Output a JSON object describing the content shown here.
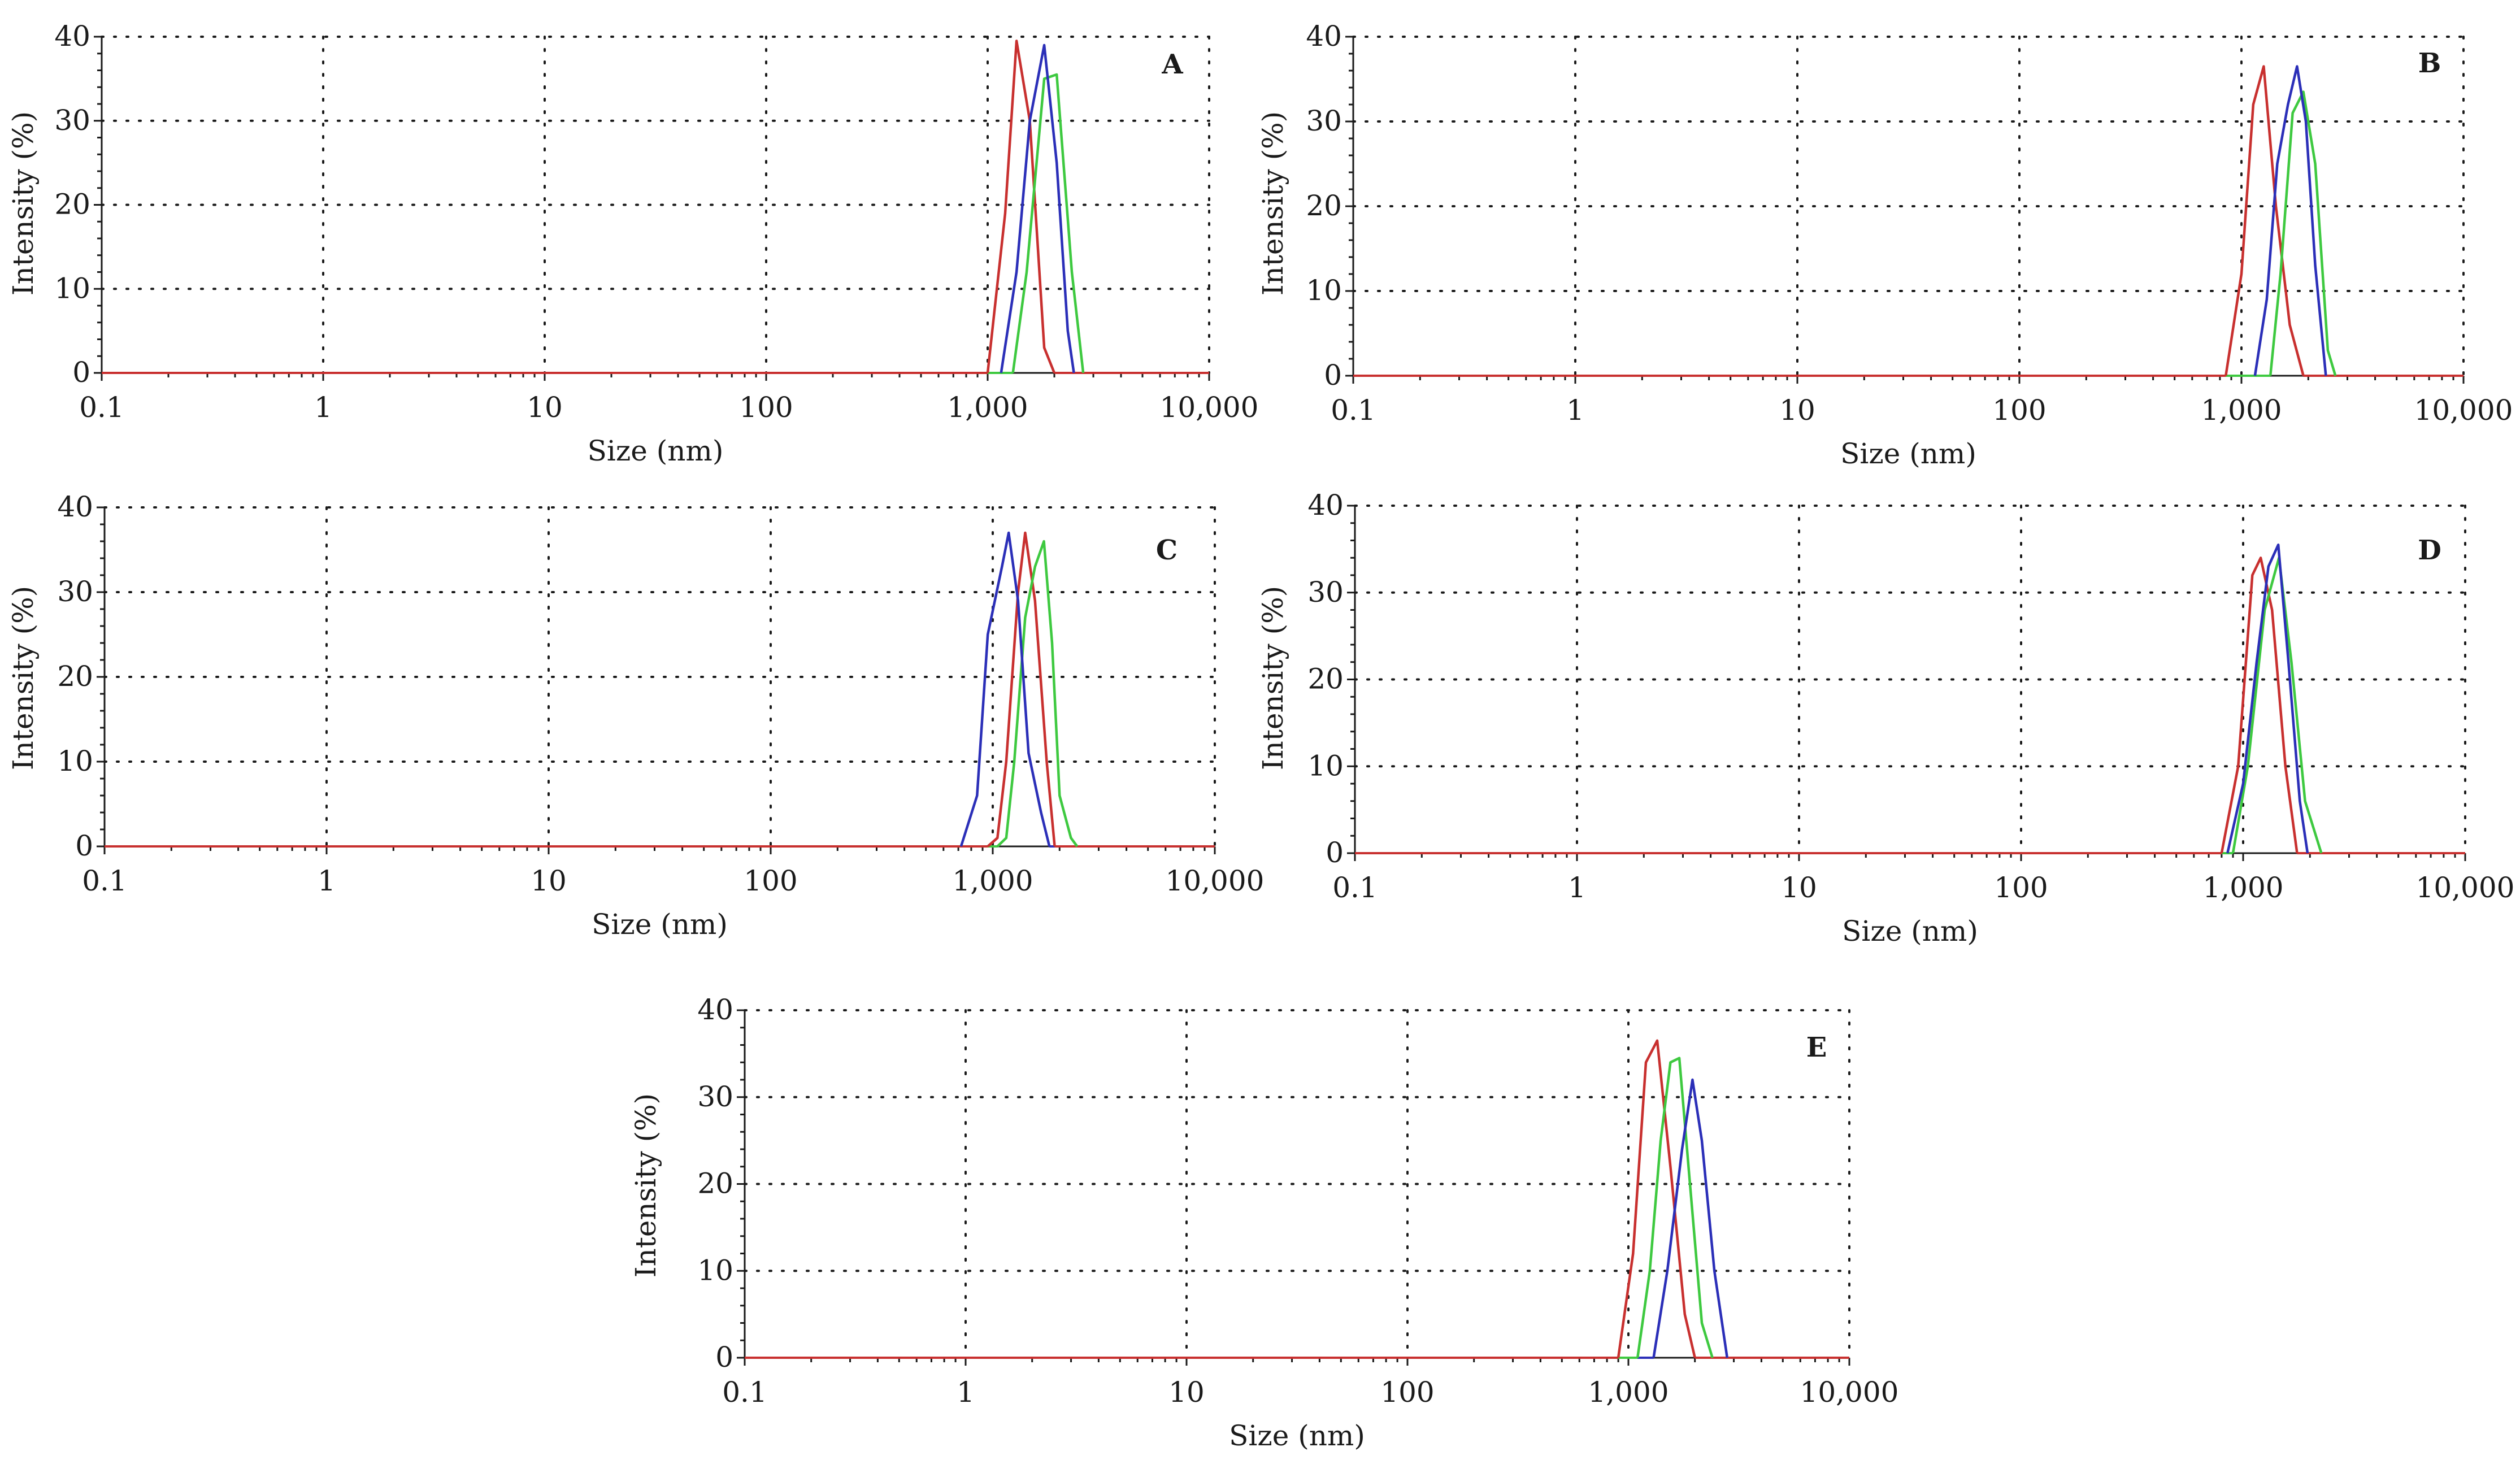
{
  "figure": {
    "series_colors": {
      "red": "#c8302f",
      "green": "#3ec940",
      "blue": "#2b2fb8"
    },
    "axis_color": "#1a1a1a",
    "grid_color": "#1a1a1a"
  },
  "chart_data": [
    {
      "id": "A",
      "type": "line",
      "panel_label": "A",
      "xlabel": "Size (nm)",
      "ylabel": "Intensity (%)",
      "x_scale": "log",
      "xlim": [
        0.1,
        10000
      ],
      "ylim": [
        0,
        40
      ],
      "x_ticks": [
        0.1,
        1,
        10,
        100,
        1000,
        10000
      ],
      "x_tick_labels": [
        "0.1",
        "1",
        "10",
        "100",
        "1,000",
        "10,000"
      ],
      "y_ticks": [
        0,
        10,
        20,
        30,
        40
      ],
      "y_tick_labels": [
        "0",
        "10",
        "20",
        "30",
        "40"
      ],
      "grid": true,
      "series": [
        {
          "name": "red",
          "color": "#c8302f",
          "points": [
            [
              1000,
              0
            ],
            [
              1200,
              19
            ],
            [
              1350,
              39.5
            ],
            [
              1550,
              30
            ],
            [
              1800,
              3
            ],
            [
              2000,
              0
            ]
          ]
        },
        {
          "name": "green",
          "color": "#3ec940",
          "points": [
            [
              1300,
              0
            ],
            [
              1500,
              12
            ],
            [
              1800,
              35
            ],
            [
              2050,
              35.5
            ],
            [
              2400,
              12
            ],
            [
              2700,
              0
            ]
          ]
        },
        {
          "name": "blue",
          "color": "#2b2fb8",
          "points": [
            [
              1150,
              0
            ],
            [
              1350,
              12
            ],
            [
              1550,
              30
            ],
            [
              1800,
              39
            ],
            [
              2050,
              25
            ],
            [
              2300,
              5
            ],
            [
              2450,
              0
            ]
          ]
        }
      ]
    },
    {
      "id": "B",
      "type": "line",
      "panel_label": "B",
      "xlabel": "Size (nm)",
      "ylabel": "Intensity (%)",
      "x_scale": "log",
      "xlim": [
        0.1,
        10000
      ],
      "ylim": [
        0,
        40
      ],
      "x_ticks": [
        0.1,
        1,
        10,
        100,
        1000,
        10000
      ],
      "x_tick_labels": [
        "0.1",
        "1",
        "10",
        "100",
        "1,000",
        "10,000"
      ],
      "y_ticks": [
        0,
        10,
        20,
        30,
        40
      ],
      "y_tick_labels": [
        "0",
        "10",
        "20",
        "30",
        "40"
      ],
      "grid": true,
      "series": [
        {
          "name": "red",
          "color": "#c8302f",
          "points": [
            [
              850,
              0
            ],
            [
              1000,
              12
            ],
            [
              1130,
              32
            ],
            [
              1260,
              36.5
            ],
            [
              1430,
              20
            ],
            [
              1650,
              6
            ],
            [
              1900,
              0
            ]
          ]
        },
        {
          "name": "green",
          "color": "#3ec940",
          "points": [
            [
              1350,
              0
            ],
            [
              1500,
              12
            ],
            [
              1700,
              31
            ],
            [
              1900,
              33.5
            ],
            [
              2150,
              25
            ],
            [
              2450,
              3
            ],
            [
              2650,
              0
            ]
          ]
        },
        {
          "name": "blue",
          "color": "#2b2fb8",
          "points": [
            [
              1150,
              0
            ],
            [
              1300,
              9
            ],
            [
              1450,
              25
            ],
            [
              1620,
              32
            ],
            [
              1780,
              36.5
            ],
            [
              1950,
              30
            ],
            [
              2150,
              13
            ],
            [
              2400,
              0
            ]
          ]
        }
      ]
    },
    {
      "id": "C",
      "type": "line",
      "panel_label": "C",
      "xlabel": "Size (nm)",
      "ylabel": "Intensity (%)",
      "x_scale": "log",
      "xlim": [
        0.1,
        10000
      ],
      "ylim": [
        0,
        40
      ],
      "x_ticks": [
        0.1,
        1,
        10,
        100,
        1000,
        10000
      ],
      "x_tick_labels": [
        "0.1",
        "1",
        "10",
        "100",
        "1,000",
        "10,000"
      ],
      "y_ticks": [
        0,
        10,
        20,
        30,
        40
      ],
      "y_tick_labels": [
        "0",
        "10",
        "20",
        "30",
        "40"
      ],
      "grid": true,
      "series": [
        {
          "name": "red",
          "color": "#c8302f",
          "points": [
            [
              950,
              0
            ],
            [
              1050,
              1
            ],
            [
              1150,
              10
            ],
            [
              1300,
              30
            ],
            [
              1400,
              37
            ],
            [
              1550,
              29
            ],
            [
              1750,
              10
            ],
            [
              1900,
              0
            ]
          ]
        },
        {
          "name": "green",
          "color": "#3ec940",
          "points": [
            [
              1050,
              0
            ],
            [
              1150,
              1
            ],
            [
              1250,
              10
            ],
            [
              1400,
              27
            ],
            [
              1550,
              33
            ],
            [
              1700,
              36
            ],
            [
              1850,
              24
            ],
            [
              2000,
              6
            ],
            [
              2250,
              1
            ],
            [
              2400,
              0
            ]
          ]
        },
        {
          "name": "blue",
          "color": "#2b2fb8",
          "points": [
            [
              720,
              0
            ],
            [
              850,
              6
            ],
            [
              950,
              25
            ],
            [
              1100,
              33
            ],
            [
              1180,
              37
            ],
            [
              1300,
              29
            ],
            [
              1450,
              11
            ],
            [
              1650,
              4
            ],
            [
              1800,
              0
            ]
          ]
        }
      ]
    },
    {
      "id": "D",
      "type": "line",
      "panel_label": "D",
      "xlabel": "Size (nm)",
      "ylabel": "Intensity (%)",
      "x_scale": "log",
      "xlim": [
        0.1,
        10000
      ],
      "ylim": [
        0,
        40
      ],
      "x_ticks": [
        0.1,
        1,
        10,
        100,
        1000,
        10000
      ],
      "x_tick_labels": [
        "0.1",
        "1",
        "10",
        "100",
        "1,000",
        "10,000"
      ],
      "y_ticks": [
        0,
        10,
        20,
        30,
        40
      ],
      "y_tick_labels": [
        "0",
        "10",
        "20",
        "30",
        "40"
      ],
      "grid": true,
      "series": [
        {
          "name": "red",
          "color": "#c8302f",
          "points": [
            [
              800,
              0
            ],
            [
              950,
              10
            ],
            [
              1100,
              32
            ],
            [
              1200,
              34
            ],
            [
              1350,
              28
            ],
            [
              1550,
              10
            ],
            [
              1750,
              0
            ]
          ]
        },
        {
          "name": "green",
          "color": "#3ec940",
          "points": [
            [
              900,
              0
            ],
            [
              1050,
              10
            ],
            [
              1250,
              28
            ],
            [
              1450,
              34
            ],
            [
              1650,
              22
            ],
            [
              1900,
              6
            ],
            [
              2250,
              0
            ]
          ]
        },
        {
          "name": "blue",
          "color": "#2b2fb8",
          "points": [
            [
              850,
              0
            ],
            [
              1000,
              8
            ],
            [
              1150,
              22
            ],
            [
              1300,
              33
            ],
            [
              1440,
              35.5
            ],
            [
              1600,
              22
            ],
            [
              1800,
              6
            ],
            [
              1950,
              0
            ]
          ]
        }
      ]
    },
    {
      "id": "E",
      "type": "line",
      "panel_label": "E",
      "xlabel": "Size (nm)",
      "ylabel": "Intensity (%)",
      "x_scale": "log",
      "xlim": [
        0.1,
        10000
      ],
      "ylim": [
        0,
        40
      ],
      "x_ticks": [
        0.1,
        1,
        10,
        100,
        1000,
        10000
      ],
      "x_tick_labels": [
        "0.1",
        "1",
        "10",
        "100",
        "1,000",
        "10,000"
      ],
      "y_ticks": [
        0,
        10,
        20,
        30,
        40
      ],
      "y_tick_labels": [
        "0",
        "10",
        "20",
        "30",
        "40"
      ],
      "grid": true,
      "series": [
        {
          "name": "red",
          "color": "#c8302f",
          "points": [
            [
              900,
              0
            ],
            [
              1050,
              12
            ],
            [
              1200,
              34
            ],
            [
              1350,
              36.5
            ],
            [
              1550,
              22
            ],
            [
              1800,
              5
            ],
            [
              2000,
              0
            ]
          ]
        },
        {
          "name": "green",
          "color": "#3ec940",
          "points": [
            [
              1100,
              0
            ],
            [
              1250,
              10
            ],
            [
              1400,
              25
            ],
            [
              1550,
              34
            ],
            [
              1700,
              34.5
            ],
            [
              1900,
              20
            ],
            [
              2150,
              4
            ],
            [
              2400,
              0
            ]
          ]
        },
        {
          "name": "blue",
          "color": "#2b2fb8",
          "points": [
            [
              1300,
              0
            ],
            [
              1500,
              10
            ],
            [
              1750,
              24
            ],
            [
              1950,
              32
            ],
            [
              2150,
              25
            ],
            [
              2450,
              10
            ],
            [
              2800,
              0
            ]
          ]
        }
      ]
    }
  ]
}
